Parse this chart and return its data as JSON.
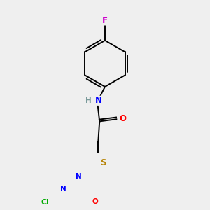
{
  "background_color": "#efefef",
  "bond_color": "#000000",
  "atom_colors": {
    "N": "#0000ff",
    "O": "#ff0000",
    "S": "#b8860b",
    "Cl": "#00aa00",
    "F": "#cc00cc",
    "H": "#7a9a9a",
    "C": "#000000"
  },
  "font_size": 8.5,
  "line_width": 1.4
}
